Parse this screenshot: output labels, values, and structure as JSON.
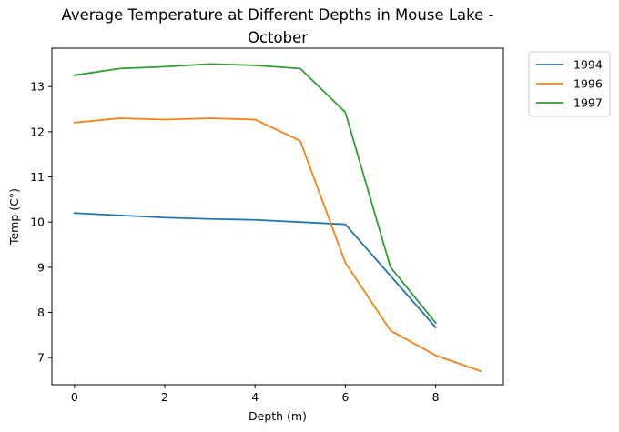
{
  "chart_data": {
    "type": "line",
    "title_line1": "Average Temperature at Different Depths in Mouse Lake -",
    "title_line2": "October",
    "xlabel": "Depth (m)",
    "ylabel": "Temp (C°)",
    "xlim": [
      -0.5,
      9.5
    ],
    "ylim": [
      6.4,
      13.85
    ],
    "xticks": [
      0,
      2,
      4,
      6,
      8
    ],
    "yticks": [
      7,
      8,
      9,
      10,
      11,
      12,
      13
    ],
    "grid": false,
    "legend_position": "outside-top-right",
    "series": [
      {
        "name": "1994",
        "color": "#1f77b4",
        "x": [
          0,
          1,
          2,
          3,
          4,
          5,
          6,
          8
        ],
        "y": [
          10.2,
          10.15,
          10.1,
          10.07,
          10.05,
          10.0,
          9.95,
          7.67
        ]
      },
      {
        "name": "1996",
        "color": "#ff7f0e",
        "x": [
          0,
          1,
          2,
          3,
          4,
          5,
          6,
          7,
          8,
          9
        ],
        "y": [
          12.2,
          12.3,
          12.27,
          12.3,
          12.27,
          11.8,
          9.1,
          7.6,
          7.05,
          6.7
        ]
      },
      {
        "name": "1997",
        "color": "#2ca02c",
        "x": [
          0,
          1,
          2,
          3,
          4,
          5,
          6,
          7,
          8
        ],
        "y": [
          13.25,
          13.4,
          13.44,
          13.5,
          13.47,
          13.4,
          12.43,
          9.0,
          7.77
        ]
      }
    ]
  }
}
